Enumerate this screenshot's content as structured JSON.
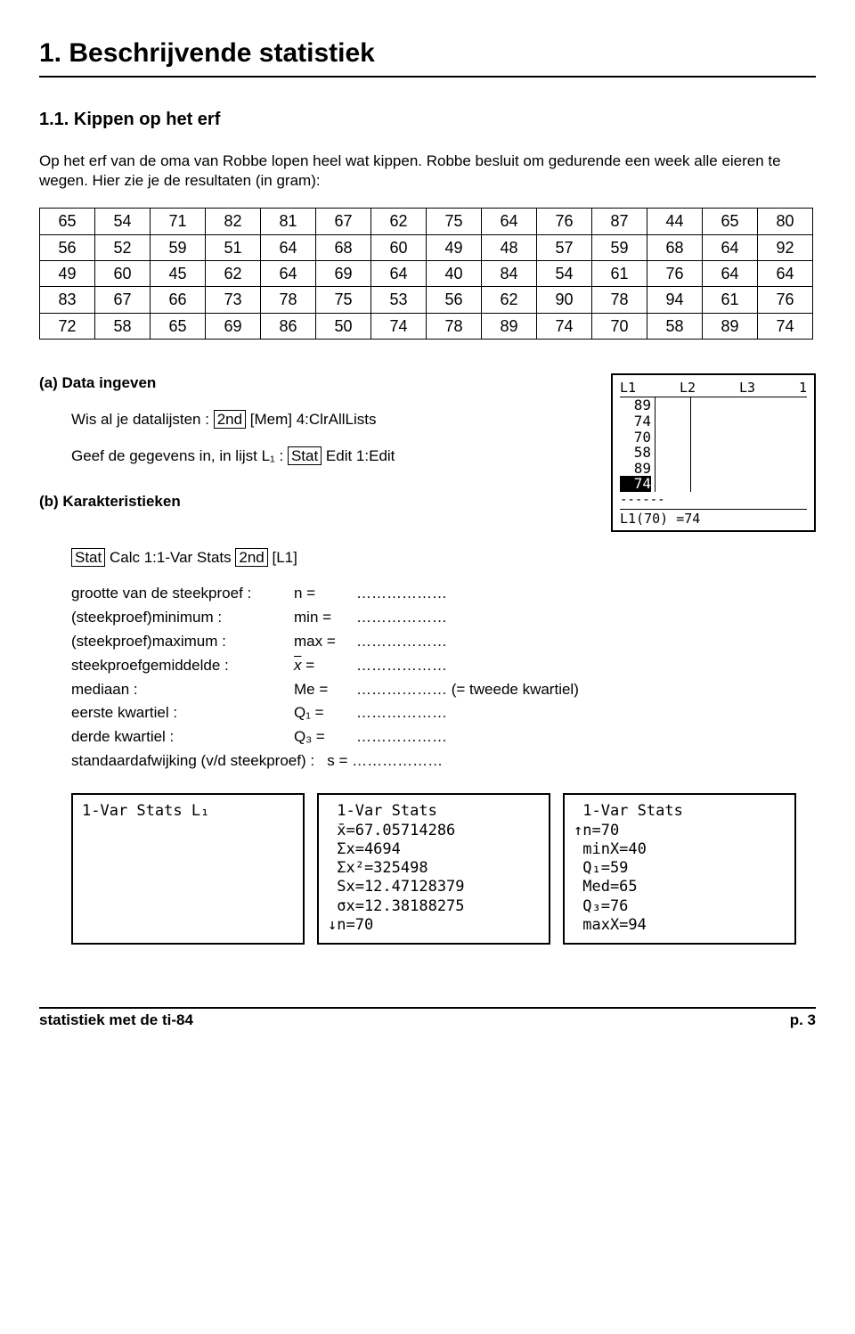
{
  "title": "1. Beschrijvende statistiek",
  "subtitle": "1.1. Kippen op het erf",
  "intro": "Op het erf van de oma van Robbe lopen heel wat kippen. Robbe besluit om gedurende een week alle eieren te wegen. Hier zie je de resultaten (in gram):",
  "table": [
    [
      "65",
      "54",
      "71",
      "82",
      "81",
      "67",
      "62",
      "75",
      "64",
      "76",
      "87",
      "44",
      "65",
      "80"
    ],
    [
      "56",
      "52",
      "59",
      "51",
      "64",
      "68",
      "60",
      "49",
      "48",
      "57",
      "59",
      "68",
      "64",
      "92"
    ],
    [
      "49",
      "60",
      "45",
      "62",
      "64",
      "69",
      "64",
      "40",
      "84",
      "54",
      "61",
      "76",
      "64",
      "64"
    ],
    [
      "83",
      "67",
      "66",
      "73",
      "78",
      "75",
      "53",
      "56",
      "62",
      "90",
      "78",
      "94",
      "61",
      "76"
    ],
    [
      "72",
      "58",
      "65",
      "69",
      "86",
      "50",
      "74",
      "78",
      "89",
      "74",
      "70",
      "58",
      "89",
      "74"
    ]
  ],
  "sectionA": "(a)  Data ingeven",
  "lineA1_pre": "Wis al je datalijsten : ",
  "lineA1_key": "2nd",
  "lineA1_post": " [Mem] 4:ClrAllLists",
  "lineA2_pre": "Geef de gegevens in, in lijst L₁ : ",
  "lineA2_key": "Stat",
  "lineA2_post": " Edit 1:Edit",
  "calc1": {
    "hL1": "L1",
    "hL2": "L2",
    "hL3": "L3",
    "hN": "1",
    "vals": [
      "89",
      "74",
      "70",
      "58",
      "89",
      "74"
    ],
    "foot": "L1(70) =74"
  },
  "sectionB": "(b)  Karakteristieken",
  "lineB1_k1": "Stat",
  "lineB1_mid": " Calc 1:1-Var Stats ",
  "lineB1_k2": "2nd",
  "lineB1_post": " [L1]",
  "stats": {
    "n": {
      "label": "grootte van de steekproef :",
      "sym": "n =",
      "fill": "………………"
    },
    "min": {
      "label": "(steekproef)minimum :",
      "sym": "min =",
      "fill": "………………"
    },
    "max": {
      "label": "(steekproef)maximum :",
      "sym": "max =",
      "fill": "………………"
    },
    "mean": {
      "label": "steekproefgemiddelde :",
      "sym": "x̄ =",
      "fill": "………………"
    },
    "med": {
      "label": "mediaan :",
      "sym": "Me =",
      "fill": "………………  (= tweede kwartiel)"
    },
    "q1": {
      "label": "eerste kwartiel :",
      "sym": "Q₁ =",
      "fill": "………………"
    },
    "q3": {
      "label": "derde kwartiel :",
      "sym": "Q₃ =",
      "fill": "………………"
    },
    "s": {
      "label": "standaardafwijking (v/d steekproef) :",
      "sym": "s =",
      "fill": "………………"
    }
  },
  "screen1": "1-Var Stats L₁",
  "screen2": " 1-Var Stats\n x̄=67.05714286\n Σx=4694\n Σx²=325498\n Sx=12.47128379\n σx=12.38188275\n↓n=70",
  "screen3": " 1-Var Stats\n↑n=70\n minX=40\n Q₁=59\n Med=65\n Q₃=76\n maxX=94",
  "footerLeft": "statistiek met de ti-84",
  "footerRight": "p. 3"
}
